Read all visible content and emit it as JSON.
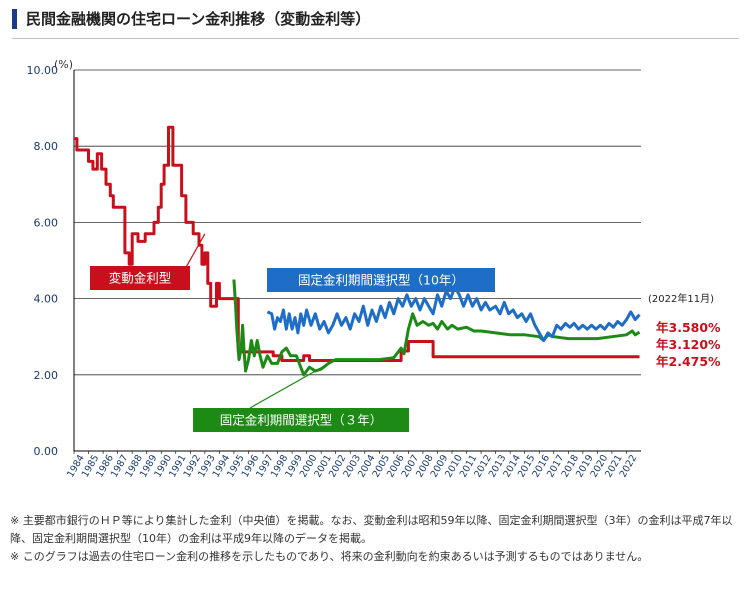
{
  "page": {
    "title": "民間金融機関の住宅ローン金利推移（変動金利等）",
    "notes": [
      "※ 主要都市銀行のＨＰ等により集計した金利（中央値）を掲載。なお、変動金利は昭和59年以降、固定金利期間選択型（3年）の金利は平成7年以降、固定金利期間選択型（10年）の金利は平成9年以降のデータを掲載。",
      "※ このグラフは過去の住宅ローン金利の推移を示したものであり、将来の金利動向を約束あるいは予測するものではありません。"
    ]
  },
  "colors": {
    "variable": "#c8101d",
    "fixed3": "#1e8a16",
    "fixed10": "#1e6ec8",
    "grid": "#333333",
    "title_bar": "#1a3a8c"
  },
  "chart_data": {
    "type": "line",
    "title": "民間金融機関の住宅ローン金利推移（変動金利等）",
    "ylabel": "(%)",
    "ylim": [
      0,
      10
    ],
    "yticks": [
      "0.00",
      "2.00",
      "4.00",
      "6.00",
      "8.00",
      "10.00"
    ],
    "xlim": [
      1984,
      2023
    ],
    "xticks": [
      "1984",
      "1985",
      "1986",
      "1987",
      "1988",
      "1989",
      "1990",
      "1991",
      "1992",
      "1993",
      "1994",
      "1995",
      "1996",
      "1997",
      "1998",
      "1999",
      "2000",
      "2001",
      "2002",
      "2003",
      "2004",
      "2005",
      "2006",
      "2007",
      "2008",
      "2009",
      "2010",
      "2011",
      "2012",
      "2013",
      "2014",
      "2015",
      "2016",
      "2017",
      "2018",
      "2019",
      "2020",
      "2021",
      "2022"
    ],
    "date_note": "(2022年11月)",
    "series": [
      {
        "name": "変動金利型",
        "key": "variable",
        "end_label": "年2.475%",
        "points": [
          [
            1984.0,
            8.2
          ],
          [
            1984.2,
            8.2
          ],
          [
            1984.2,
            7.9
          ],
          [
            1985.0,
            7.9
          ],
          [
            1985.0,
            7.6
          ],
          [
            1985.3,
            7.6
          ],
          [
            1985.3,
            7.4
          ],
          [
            1985.6,
            7.4
          ],
          [
            1985.6,
            7.8
          ],
          [
            1985.9,
            7.8
          ],
          [
            1985.9,
            7.4
          ],
          [
            1986.2,
            7.4
          ],
          [
            1986.2,
            7.0
          ],
          [
            1986.5,
            7.0
          ],
          [
            1986.5,
            6.7
          ],
          [
            1986.7,
            6.7
          ],
          [
            1986.7,
            6.4
          ],
          [
            1987.5,
            6.4
          ],
          [
            1987.5,
            5.2
          ],
          [
            1987.8,
            5.2
          ],
          [
            1987.8,
            4.9
          ],
          [
            1988.0,
            4.9
          ],
          [
            1988.0,
            5.7
          ],
          [
            1988.4,
            5.7
          ],
          [
            1988.4,
            5.5
          ],
          [
            1988.9,
            5.5
          ],
          [
            1988.9,
            5.7
          ],
          [
            1989.5,
            5.7
          ],
          [
            1989.5,
            6.0
          ],
          [
            1989.8,
            6.0
          ],
          [
            1989.8,
            6.4
          ],
          [
            1990.0,
            6.4
          ],
          [
            1990.0,
            7.0
          ],
          [
            1990.2,
            7.0
          ],
          [
            1990.2,
            7.5
          ],
          [
            1990.5,
            7.5
          ],
          [
            1990.5,
            8.5
          ],
          [
            1990.8,
            8.5
          ],
          [
            1990.8,
            7.5
          ],
          [
            1991.4,
            7.5
          ],
          [
            1991.4,
            6.7
          ],
          [
            1991.7,
            6.7
          ],
          [
            1991.7,
            6.0
          ],
          [
            1992.2,
            6.0
          ],
          [
            1992.2,
            5.7
          ],
          [
            1992.6,
            5.7
          ],
          [
            1992.6,
            5.4
          ],
          [
            1992.8,
            5.4
          ],
          [
            1992.8,
            4.9
          ],
          [
            1993.0,
            4.9
          ],
          [
            1993.0,
            5.2
          ],
          [
            1993.2,
            5.2
          ],
          [
            1993.2,
            4.4
          ],
          [
            1993.4,
            4.4
          ],
          [
            1993.4,
            3.8
          ],
          [
            1993.8,
            3.8
          ],
          [
            1993.8,
            4.4
          ],
          [
            1994.0,
            4.4
          ],
          [
            1994.0,
            4.0
          ],
          [
            1995.3,
            4.0
          ],
          [
            1995.3,
            2.6
          ],
          [
            1997.7,
            2.6
          ],
          [
            1997.7,
            2.5
          ],
          [
            1998.3,
            2.5
          ],
          [
            1998.3,
            2.375
          ],
          [
            1999.8,
            2.375
          ],
          [
            1999.8,
            2.5
          ],
          [
            2000.2,
            2.5
          ],
          [
            2000.2,
            2.375
          ],
          [
            2006.5,
            2.375
          ],
          [
            2006.5,
            2.625
          ],
          [
            2007.0,
            2.625
          ],
          [
            2007.0,
            2.875
          ],
          [
            2008.7,
            2.875
          ],
          [
            2008.7,
            2.475
          ],
          [
            2022.9,
            2.475
          ]
        ]
      },
      {
        "name": "固定金利期間選択型（3年）",
        "key": "fixed3",
        "end_label": "年3.120%",
        "points": [
          [
            1995.0,
            4.5
          ],
          [
            1995.1,
            3.9
          ],
          [
            1995.2,
            3.2
          ],
          [
            1995.35,
            2.4
          ],
          [
            1995.5,
            2.7
          ],
          [
            1995.6,
            3.3
          ],
          [
            1995.7,
            2.6
          ],
          [
            1995.8,
            2.1
          ],
          [
            1996.0,
            2.4
          ],
          [
            1996.2,
            2.9
          ],
          [
            1996.4,
            2.5
          ],
          [
            1996.6,
            2.9
          ],
          [
            1996.8,
            2.5
          ],
          [
            1997.0,
            2.2
          ],
          [
            1997.3,
            2.5
          ],
          [
            1997.6,
            2.3
          ],
          [
            1998.0,
            2.3
          ],
          [
            1998.3,
            2.6
          ],
          [
            1998.6,
            2.7
          ],
          [
            1998.9,
            2.5
          ],
          [
            1999.3,
            2.5
          ],
          [
            1999.5,
            2.3
          ],
          [
            1999.8,
            2.0
          ],
          [
            2000.2,
            2.2
          ],
          [
            2000.6,
            2.1
          ],
          [
            2001.0,
            2.15
          ],
          [
            2001.5,
            2.3
          ],
          [
            2002.0,
            2.4
          ],
          [
            2003.0,
            2.4
          ],
          [
            2004.0,
            2.4
          ],
          [
            2005.0,
            2.4
          ],
          [
            2006.0,
            2.45
          ],
          [
            2006.5,
            2.7
          ],
          [
            2006.7,
            2.55
          ],
          [
            2007.0,
            3.2
          ],
          [
            2007.3,
            3.6
          ],
          [
            2007.6,
            3.3
          ],
          [
            2008.0,
            3.4
          ],
          [
            2008.4,
            3.3
          ],
          [
            2008.7,
            3.35
          ],
          [
            2009.0,
            3.2
          ],
          [
            2009.3,
            3.4
          ],
          [
            2009.7,
            3.2
          ],
          [
            2010.0,
            3.3
          ],
          [
            2010.4,
            3.2
          ],
          [
            2011.0,
            3.25
          ],
          [
            2011.5,
            3.15
          ],
          [
            2012.0,
            3.15
          ],
          [
            2013.0,
            3.1
          ],
          [
            2014.0,
            3.05
          ],
          [
            2015.0,
            3.05
          ],
          [
            2016.0,
            3.0
          ],
          [
            2016.3,
            2.9
          ],
          [
            2016.6,
            3.05
          ],
          [
            2017.0,
            3.0
          ],
          [
            2018.0,
            2.95
          ],
          [
            2019.0,
            2.95
          ],
          [
            2020.0,
            2.95
          ],
          [
            2021.0,
            3.0
          ],
          [
            2022.0,
            3.05
          ],
          [
            2022.4,
            3.15
          ],
          [
            2022.6,
            3.05
          ],
          [
            2022.9,
            3.12
          ]
        ]
      },
      {
        "name": "固定金利期間選択型（10年）",
        "key": "fixed10",
        "end_label": "年3.580%",
        "points": [
          [
            1997.3,
            3.65
          ],
          [
            1997.6,
            3.6
          ],
          [
            1997.8,
            3.2
          ],
          [
            1998.0,
            3.5
          ],
          [
            1998.2,
            3.4
          ],
          [
            1998.4,
            3.7
          ],
          [
            1998.6,
            3.2
          ],
          [
            1998.8,
            3.6
          ],
          [
            1999.0,
            3.2
          ],
          [
            1999.2,
            3.5
          ],
          [
            1999.4,
            3.1
          ],
          [
            1999.6,
            3.6
          ],
          [
            1999.8,
            3.3
          ],
          [
            2000.0,
            3.7
          ],
          [
            2000.3,
            3.3
          ],
          [
            2000.6,
            3.6
          ],
          [
            2000.9,
            3.2
          ],
          [
            2001.2,
            3.4
          ],
          [
            2001.5,
            3.1
          ],
          [
            2001.8,
            3.3
          ],
          [
            2002.1,
            3.6
          ],
          [
            2002.4,
            3.3
          ],
          [
            2002.7,
            3.5
          ],
          [
            2003.0,
            3.2
          ],
          [
            2003.3,
            3.6
          ],
          [
            2003.6,
            3.4
          ],
          [
            2003.9,
            3.8
          ],
          [
            2004.2,
            3.3
          ],
          [
            2004.5,
            3.7
          ],
          [
            2004.8,
            3.4
          ],
          [
            2005.1,
            3.8
          ],
          [
            2005.4,
            3.5
          ],
          [
            2005.7,
            3.9
          ],
          [
            2006.0,
            3.6
          ],
          [
            2006.3,
            4.0
          ],
          [
            2006.6,
            3.8
          ],
          [
            2006.9,
            4.1
          ],
          [
            2007.2,
            3.8
          ],
          [
            2007.5,
            4.0
          ],
          [
            2007.8,
            3.7
          ],
          [
            2008.1,
            4.0
          ],
          [
            2008.4,
            3.8
          ],
          [
            2008.7,
            3.6
          ],
          [
            2009.0,
            4.1
          ],
          [
            2009.3,
            3.8
          ],
          [
            2009.6,
            4.2
          ],
          [
            2009.9,
            4.0
          ],
          [
            2010.2,
            4.3
          ],
          [
            2010.5,
            4.1
          ],
          [
            2010.8,
            3.8
          ],
          [
            2011.1,
            4.1
          ],
          [
            2011.4,
            3.8
          ],
          [
            2011.7,
            4.0
          ],
          [
            2012.0,
            3.7
          ],
          [
            2012.3,
            3.9
          ],
          [
            2012.6,
            3.7
          ],
          [
            2013.0,
            3.8
          ],
          [
            2013.3,
            3.6
          ],
          [
            2013.6,
            3.9
          ],
          [
            2013.9,
            3.6
          ],
          [
            2014.2,
            3.7
          ],
          [
            2014.5,
            3.5
          ],
          [
            2014.8,
            3.6
          ],
          [
            2015.1,
            3.4
          ],
          [
            2015.4,
            3.6
          ],
          [
            2015.7,
            3.3
          ],
          [
            2016.0,
            3.1
          ],
          [
            2016.3,
            2.9
          ],
          [
            2016.6,
            3.1
          ],
          [
            2016.9,
            3.0
          ],
          [
            2017.2,
            3.3
          ],
          [
            2017.5,
            3.2
          ],
          [
            2017.8,
            3.35
          ],
          [
            2018.1,
            3.25
          ],
          [
            2018.4,
            3.35
          ],
          [
            2018.7,
            3.2
          ],
          [
            2019.0,
            3.3
          ],
          [
            2019.3,
            3.2
          ],
          [
            2019.6,
            3.3
          ],
          [
            2019.9,
            3.2
          ],
          [
            2020.2,
            3.3
          ],
          [
            2020.5,
            3.2
          ],
          [
            2020.8,
            3.35
          ],
          [
            2021.1,
            3.25
          ],
          [
            2021.4,
            3.4
          ],
          [
            2021.7,
            3.3
          ],
          [
            2022.0,
            3.45
          ],
          [
            2022.3,
            3.65
          ],
          [
            2022.6,
            3.45
          ],
          [
            2022.9,
            3.58
          ]
        ]
      }
    ],
    "callouts": [
      {
        "series": "variable",
        "text": "変動金利型"
      },
      {
        "series": "fixed10",
        "text": "固定金利期間選択型（10年）"
      },
      {
        "series": "fixed3",
        "text": "固定金利期間選択型（３年）"
      }
    ]
  }
}
